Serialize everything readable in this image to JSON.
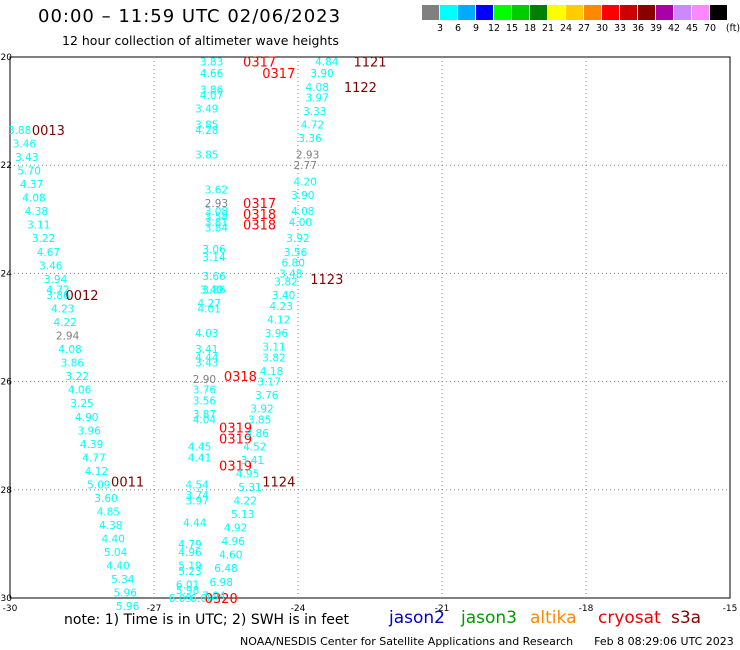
{
  "header": {
    "title": "00:00 – 11:59 UTC 02/06/2023",
    "subtitle": "12 hour collection of altimeter wave heights"
  },
  "legend": {
    "unit": "(ft)",
    "bins": [
      {
        "label": "3",
        "color": "#808080"
      },
      {
        "label": "6",
        "color": "#00ffff"
      },
      {
        "label": "9",
        "color": "#00aaff"
      },
      {
        "label": "12",
        "color": "#0000ff"
      },
      {
        "label": "15",
        "color": "#00ff00"
      },
      {
        "label": "18",
        "color": "#00cc00"
      },
      {
        "label": "21",
        "color": "#008000"
      },
      {
        "label": "24",
        "color": "#ffff00"
      },
      {
        "label": "27",
        "color": "#ffcc00"
      },
      {
        "label": "30",
        "color": "#ff8800"
      },
      {
        "label": "33",
        "color": "#ff0000"
      },
      {
        "label": "36",
        "color": "#cc0000"
      },
      {
        "label": "39",
        "color": "#880000"
      },
      {
        "label": "42",
        "color": "#aa00aa"
      },
      {
        "label": "45",
        "color": "#cc88ff"
      },
      {
        "label": "70",
        "color": "#ff88ff"
      },
      {
        "label": "",
        "color": "#000000"
      }
    ]
  },
  "map": {
    "lon_range": [
      -30,
      -15
    ],
    "lat_range": [
      -30,
      -20
    ],
    "x_ticks": [
      "-30",
      "-27",
      "-24",
      "-21",
      "-18",
      "-15"
    ],
    "y_ticks": [
      "-20",
      "-22",
      "-24",
      "-26",
      "-28",
      "-30"
    ],
    "colors": {
      "swh_cyan": "#00ffff",
      "swh_gray": "#808080",
      "time_dark": "#800000",
      "time_red": "#ff0000"
    },
    "tracks": [
      {
        "name": "track-0013",
        "time_labels": [
          {
            "text": "0013",
            "lon": -29.2,
            "lat": -21.35,
            "color": "dark"
          },
          {
            "text": "0012",
            "lon": -28.5,
            "lat": -24.4,
            "color": "dark"
          },
          {
            "text": "0011",
            "lon": -27.55,
            "lat": -27.85,
            "color": "dark"
          }
        ],
        "points": [
          {
            "lon": -29.8,
            "lat": -21.35,
            "swh": "3.88"
          },
          {
            "lon": -29.7,
            "lat": -21.6,
            "swh": "3.46"
          },
          {
            "lon": -29.65,
            "lat": -21.85,
            "swh": "3.43"
          },
          {
            "lon": -29.6,
            "lat": -22.1,
            "swh": "5.70"
          },
          {
            "lon": -29.55,
            "lat": -22.35,
            "swh": "4.37"
          },
          {
            "lon": -29.5,
            "lat": -22.6,
            "swh": "4.08"
          },
          {
            "lon": -29.45,
            "lat": -22.85,
            "swh": "4.38"
          },
          {
            "lon": -29.4,
            "lat": -23.1,
            "swh": "3.11"
          },
          {
            "lon": -29.3,
            "lat": -23.35,
            "swh": "3.22"
          },
          {
            "lon": -29.2,
            "lat": -23.6,
            "swh": "4.67"
          },
          {
            "lon": -29.15,
            "lat": -23.85,
            "swh": "3.46"
          },
          {
            "lon": -29.05,
            "lat": -24.1,
            "swh": "3.94"
          },
          {
            "lon": -29.0,
            "lat": -24.3,
            "swh": "4.72"
          },
          {
            "lon": -29.0,
            "lat": -24.4,
            "swh": "3.86"
          },
          {
            "lon": -28.9,
            "lat": -24.65,
            "swh": "4.23"
          },
          {
            "lon": -28.85,
            "lat": -24.9,
            "swh": "4.22"
          },
          {
            "lon": -28.8,
            "lat": -25.15,
            "swh": "2.94",
            "color": "gray"
          },
          {
            "lon": -28.75,
            "lat": -25.4,
            "swh": "4.08"
          },
          {
            "lon": -28.7,
            "lat": -25.65,
            "swh": "3.86"
          },
          {
            "lon": -28.6,
            "lat": -25.9,
            "swh": "3.22"
          },
          {
            "lon": -28.55,
            "lat": -26.15,
            "swh": "4.06"
          },
          {
            "lon": -28.5,
            "lat": -26.4,
            "swh": "3.25"
          },
          {
            "lon": -28.4,
            "lat": -26.65,
            "swh": "4.90"
          },
          {
            "lon": -28.35,
            "lat": -26.9,
            "swh": "3.96"
          },
          {
            "lon": -28.3,
            "lat": -27.15,
            "swh": "4.39"
          },
          {
            "lon": -28.25,
            "lat": -27.4,
            "swh": "4.77"
          },
          {
            "lon": -28.2,
            "lat": -27.65,
            "swh": "4.12"
          },
          {
            "lon": -28.15,
            "lat": -27.9,
            "swh": "5.09"
          },
          {
            "lon": -28.0,
            "lat": -28.15,
            "swh": "3.60"
          },
          {
            "lon": -27.95,
            "lat": -28.4,
            "swh": "4.85"
          },
          {
            "lon": -27.9,
            "lat": -28.65,
            "swh": "4.38"
          },
          {
            "lon": -27.85,
            "lat": -28.9,
            "swh": "4.40"
          },
          {
            "lon": -27.8,
            "lat": -29.15,
            "swh": "5.04"
          },
          {
            "lon": -27.75,
            "lat": -29.4,
            "swh": "4.40"
          },
          {
            "lon": -27.65,
            "lat": -29.65,
            "swh": "5.34"
          },
          {
            "lon": -27.6,
            "lat": -29.9,
            "swh": "5.96"
          },
          {
            "lon": -27.55,
            "lat": -30.15,
            "swh": "5.96"
          }
        ]
      },
      {
        "name": "track-0317",
        "time_labels": [
          {
            "text": "0317",
            "lon": -24.8,
            "lat": -20.08,
            "color": "red"
          },
          {
            "text": "0317",
            "lon": -24.4,
            "lat": -20.3,
            "color": "red"
          },
          {
            "text": "0317",
            "lon": -24.8,
            "lat": -22.7,
            "color": "red"
          },
          {
            "text": "0318",
            "lon": -24.8,
            "lat": -22.9,
            "color": "red"
          },
          {
            "text": "0318",
            "lon": -24.8,
            "lat": -23.1,
            "color": "red"
          },
          {
            "text": "0318",
            "lon": -25.2,
            "lat": -25.9,
            "color": "red"
          },
          {
            "text": "0319",
            "lon": -25.3,
            "lat": -26.85,
            "color": "red"
          },
          {
            "text": "0319",
            "lon": -25.3,
            "lat": -27.05,
            "color": "red"
          },
          {
            "text": "0319",
            "lon": -25.3,
            "lat": -27.55,
            "color": "red"
          },
          {
            "text": "0320",
            "lon": -25.6,
            "lat": -30.0,
            "color": "red"
          }
        ],
        "points": [
          {
            "lon": -25.8,
            "lat": -20.08,
            "swh": "3.83"
          },
          {
            "lon": -25.8,
            "lat": -20.3,
            "swh": "4.66"
          },
          {
            "lon": -25.8,
            "lat": -20.6,
            "swh": "3.86"
          },
          {
            "lon": -25.8,
            "lat": -20.7,
            "swh": "4.07"
          },
          {
            "lon": -25.9,
            "lat": -20.95,
            "swh": "3.49"
          },
          {
            "lon": -25.9,
            "lat": -21.25,
            "swh": "3.85"
          },
          {
            "lon": -25.9,
            "lat": -21.35,
            "swh": "4.28"
          },
          {
            "lon": -25.9,
            "lat": -21.8,
            "swh": "3.85"
          },
          {
            "lon": -25.7,
            "lat": -22.45,
            "swh": "3.62"
          },
          {
            "lon": -25.7,
            "lat": -22.7,
            "swh": "2.93",
            "color": "gray"
          },
          {
            "lon": -25.7,
            "lat": -22.85,
            "swh": "3.08"
          },
          {
            "lon": -25.7,
            "lat": -22.95,
            "swh": "3.58"
          },
          {
            "lon": -25.7,
            "lat": -23.05,
            "swh": "3.81"
          },
          {
            "lon": -25.7,
            "lat": -23.15,
            "swh": "3.84"
          },
          {
            "lon": -25.75,
            "lat": -23.55,
            "swh": "3.06"
          },
          {
            "lon": -25.75,
            "lat": -23.7,
            "swh": "3.14"
          },
          {
            "lon": -25.75,
            "lat": -24.05,
            "swh": "3.66"
          },
          {
            "lon": -25.75,
            "lat": -24.3,
            "swh": "3.86"
          },
          {
            "lon": -25.8,
            "lat": -24.3,
            "swh": "3.40"
          },
          {
            "lon": -25.85,
            "lat": -24.55,
            "swh": "4.27"
          },
          {
            "lon": -25.85,
            "lat": -24.65,
            "swh": "4.01"
          },
          {
            "lon": -25.9,
            "lat": -25.1,
            "swh": "4.03"
          },
          {
            "lon": -25.9,
            "lat": -25.4,
            "swh": "3.41"
          },
          {
            "lon": -25.9,
            "lat": -25.55,
            "swh": "4.44"
          },
          {
            "lon": -25.9,
            "lat": -25.65,
            "swh": "3.43"
          },
          {
            "lon": -25.95,
            "lat": -25.95,
            "swh": "2.90",
            "color": "gray"
          },
          {
            "lon": -25.95,
            "lat": -26.15,
            "swh": "3.76"
          },
          {
            "lon": -25.95,
            "lat": -26.35,
            "swh": "3.56"
          },
          {
            "lon": -25.95,
            "lat": -26.6,
            "swh": "3.87"
          },
          {
            "lon": -25.95,
            "lat": -26.7,
            "swh": "4.04"
          },
          {
            "lon": -26.05,
            "lat": -27.2,
            "swh": "4.45"
          },
          {
            "lon": -26.05,
            "lat": -27.4,
            "swh": "4.41"
          },
          {
            "lon": -26.1,
            "lat": -27.9,
            "swh": "4.54"
          },
          {
            "lon": -26.1,
            "lat": -28.1,
            "swh": "3.74"
          },
          {
            "lon": -26.1,
            "lat": -28.2,
            "swh": "3.97"
          },
          {
            "lon": -26.15,
            "lat": -28.6,
            "swh": "4.44"
          },
          {
            "lon": -26.25,
            "lat": -29.0,
            "swh": "4.79"
          },
          {
            "lon": -26.25,
            "lat": -29.15,
            "swh": "4.96"
          },
          {
            "lon": -26.25,
            "lat": -29.4,
            "swh": "5.19"
          },
          {
            "lon": -26.25,
            "lat": -29.5,
            "swh": "5.23"
          },
          {
            "lon": -26.3,
            "lat": -29.75,
            "swh": "6.01"
          },
          {
            "lon": -26.3,
            "lat": -29.85,
            "swh": "5.98"
          },
          {
            "lon": -26.45,
            "lat": -30.0,
            "swh": "6.09"
          },
          {
            "lon": -26.0,
            "lat": -30.0,
            "swh": "6.00"
          }
        ]
      },
      {
        "name": "track-1121",
        "time_labels": [
          {
            "text": "1121",
            "lon": -22.5,
            "lat": -20.08,
            "color": "dark"
          },
          {
            "text": "1122",
            "lon": -22.7,
            "lat": -20.55,
            "color": "dark"
          },
          {
            "text": "1123",
            "lon": -23.4,
            "lat": -24.1,
            "color": "dark"
          },
          {
            "text": "1124",
            "lon": -24.4,
            "lat": -27.85,
            "color": "dark"
          }
        ],
        "points": [
          {
            "lon": -23.4,
            "lat": -20.08,
            "swh": "4.84"
          },
          {
            "lon": -23.5,
            "lat": -20.3,
            "swh": "3.90"
          },
          {
            "lon": -23.6,
            "lat": -20.55,
            "swh": "4.08"
          },
          {
            "lon": -23.6,
            "lat": -20.75,
            "swh": "3.97"
          },
          {
            "lon": -23.65,
            "lat": -21.0,
            "swh": "3.33"
          },
          {
            "lon": -23.7,
            "lat": -21.25,
            "swh": "4.72"
          },
          {
            "lon": -23.75,
            "lat": -21.5,
            "swh": "3.36"
          },
          {
            "lon": -23.8,
            "lat": -21.8,
            "swh": "2.93",
            "color": "gray"
          },
          {
            "lon": -23.85,
            "lat": -22.0,
            "swh": "2.77",
            "color": "gray"
          },
          {
            "lon": -23.85,
            "lat": -22.3,
            "swh": "4.20"
          },
          {
            "lon": -23.9,
            "lat": -22.55,
            "swh": "3.90"
          },
          {
            "lon": -23.9,
            "lat": -22.85,
            "swh": "4.08"
          },
          {
            "lon": -23.95,
            "lat": -23.05,
            "swh": "4.00"
          },
          {
            "lon": -24.0,
            "lat": -23.35,
            "swh": "3.92"
          },
          {
            "lon": -24.05,
            "lat": -23.6,
            "swh": "3.56"
          },
          {
            "lon": -24.1,
            "lat": -23.8,
            "swh": "6.80"
          },
          {
            "lon": -24.15,
            "lat": -24.0,
            "swh": "3.48"
          },
          {
            "lon": -24.25,
            "lat": -24.15,
            "swh": "3.82"
          },
          {
            "lon": -24.3,
            "lat": -24.4,
            "swh": "3.40"
          },
          {
            "lon": -24.35,
            "lat": -24.6,
            "swh": "4.23"
          },
          {
            "lon": -24.4,
            "lat": -24.85,
            "swh": "4.12"
          },
          {
            "lon": -24.45,
            "lat": -25.1,
            "swh": "3.96"
          },
          {
            "lon": -24.5,
            "lat": -25.35,
            "swh": "3.11"
          },
          {
            "lon": -24.5,
            "lat": -25.55,
            "swh": "3.82"
          },
          {
            "lon": -24.55,
            "lat": -25.8,
            "swh": "4.18"
          },
          {
            "lon": -24.6,
            "lat": -26.0,
            "swh": "3.17"
          },
          {
            "lon": -24.65,
            "lat": -26.25,
            "swh": "3.76"
          },
          {
            "lon": -24.75,
            "lat": -26.5,
            "swh": "3.92"
          },
          {
            "lon": -24.8,
            "lat": -26.7,
            "swh": "3.85"
          },
          {
            "lon": -24.85,
            "lat": -26.95,
            "swh": "3.86"
          },
          {
            "lon": -24.9,
            "lat": -27.2,
            "swh": "4.52"
          },
          {
            "lon": -24.95,
            "lat": -27.45,
            "swh": "3.41"
          },
          {
            "lon": -25.05,
            "lat": -27.7,
            "swh": "4.95"
          },
          {
            "lon": -25.0,
            "lat": -27.95,
            "swh": "5.31"
          },
          {
            "lon": -25.1,
            "lat": -28.2,
            "swh": "4.22"
          },
          {
            "lon": -25.15,
            "lat": -28.45,
            "swh": "5.13"
          },
          {
            "lon": -25.3,
            "lat": -28.7,
            "swh": "4.92"
          },
          {
            "lon": -25.35,
            "lat": -28.95,
            "swh": "4.96"
          },
          {
            "lon": -25.4,
            "lat": -29.2,
            "swh": "4.60"
          },
          {
            "lon": -25.5,
            "lat": -29.45,
            "swh": "6.48"
          },
          {
            "lon": -25.6,
            "lat": -29.7,
            "swh": "6.98"
          },
          {
            "lon": -25.75,
            "lat": -29.95,
            "swh": "7.94"
          }
        ]
      }
    ]
  },
  "footer": {
    "note": "note:  1) Time is in UTC; 2) SWH is in feet",
    "satellites": [
      {
        "name": "jason2",
        "color": "#0000cc"
      },
      {
        "name": "jason3",
        "color": "#009900"
      },
      {
        "name": "altika",
        "color": "#ff8800"
      },
      {
        "name": "cryosat",
        "color": "#ee0000"
      },
      {
        "name": "s3a",
        "color": "#880000"
      }
    ],
    "credit": "NOAA/NESDIS Center for Satellite Applications and Research",
    "timestamp": "Feb  8 08:29:06 UTC 2023"
  }
}
